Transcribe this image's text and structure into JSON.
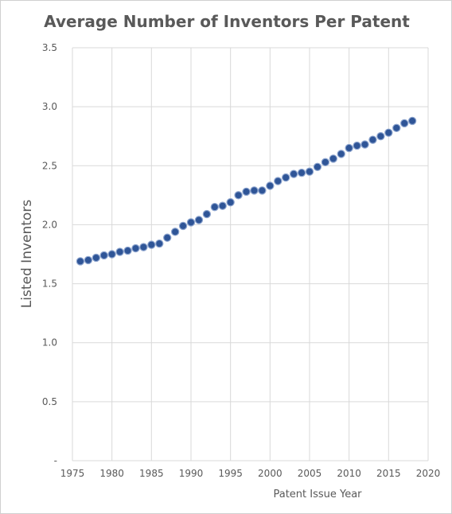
{
  "chart_data": {
    "type": "scatter",
    "title": "Average Number of Inventors Per Patent",
    "xlabel": "Patent Issue Year",
    "ylabel": "Listed Inventors",
    "xlim": [
      1975,
      2020
    ],
    "ylim": [
      0,
      3.5
    ],
    "x_ticks": [
      1975,
      1980,
      1985,
      1990,
      1995,
      2000,
      2005,
      2010,
      2015,
      2020
    ],
    "y_ticks": [
      0,
      0.5,
      1.0,
      1.5,
      2.0,
      2.5,
      3.0,
      3.5
    ],
    "y_tick_labels": [
      "-",
      "0.5",
      "1.0",
      "1.5",
      "2.0",
      "2.5",
      "3.0",
      "3.5"
    ],
    "x_tick_labels": [
      "1975",
      "1980",
      "1985",
      "1990",
      "1995",
      "2000",
      "2005",
      "2010",
      "2015",
      "2020"
    ],
    "grid": true,
    "marker_color": "#2F5597",
    "marker_edge_color": "#8FA6CF",
    "points": [
      {
        "x": 1976,
        "y": 1.69
      },
      {
        "x": 1977,
        "y": 1.7
      },
      {
        "x": 1978,
        "y": 1.72
      },
      {
        "x": 1979,
        "y": 1.74
      },
      {
        "x": 1980,
        "y": 1.75
      },
      {
        "x": 1981,
        "y": 1.77
      },
      {
        "x": 1982,
        "y": 1.78
      },
      {
        "x": 1983,
        "y": 1.8
      },
      {
        "x": 1984,
        "y": 1.81
      },
      {
        "x": 1985,
        "y": 1.83
      },
      {
        "x": 1986,
        "y": 1.84
      },
      {
        "x": 1987,
        "y": 1.89
      },
      {
        "x": 1988,
        "y": 1.94
      },
      {
        "x": 1989,
        "y": 1.99
      },
      {
        "x": 1990,
        "y": 2.02
      },
      {
        "x": 1991,
        "y": 2.04
      },
      {
        "x": 1992,
        "y": 2.09
      },
      {
        "x": 1993,
        "y": 2.15
      },
      {
        "x": 1994,
        "y": 2.16
      },
      {
        "x": 1995,
        "y": 2.19
      },
      {
        "x": 1996,
        "y": 2.25
      },
      {
        "x": 1997,
        "y": 2.28
      },
      {
        "x": 1998,
        "y": 2.29
      },
      {
        "x": 1999,
        "y": 2.29
      },
      {
        "x": 2000,
        "y": 2.33
      },
      {
        "x": 2001,
        "y": 2.37
      },
      {
        "x": 2002,
        "y": 2.4
      },
      {
        "x": 2003,
        "y": 2.43
      },
      {
        "x": 2004,
        "y": 2.44
      },
      {
        "x": 2005,
        "y": 2.45
      },
      {
        "x": 2006,
        "y": 2.49
      },
      {
        "x": 2007,
        "y": 2.53
      },
      {
        "x": 2008,
        "y": 2.56
      },
      {
        "x": 2009,
        "y": 2.6
      },
      {
        "x": 2010,
        "y": 2.65
      },
      {
        "x": 2011,
        "y": 2.67
      },
      {
        "x": 2012,
        "y": 2.68
      },
      {
        "x": 2013,
        "y": 2.72
      },
      {
        "x": 2014,
        "y": 2.75
      },
      {
        "x": 2015,
        "y": 2.78
      },
      {
        "x": 2016,
        "y": 2.82
      },
      {
        "x": 2017,
        "y": 2.86
      },
      {
        "x": 2018,
        "y": 2.88
      }
    ]
  }
}
